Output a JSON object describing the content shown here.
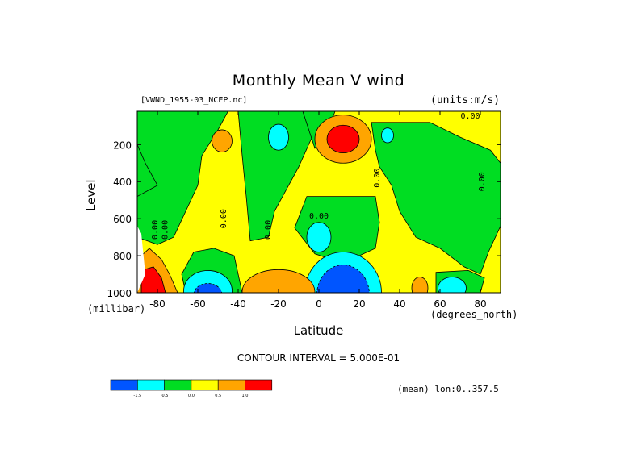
{
  "title": "Monthly Mean V wind",
  "dataset": "[VWND_1955-03_NCEP.nc]",
  "units": "(units:m/s)",
  "y_label": "Level",
  "y_unit": "(millibar)",
  "x_label": "Latitude",
  "x_unit": "(degrees_north)",
  "contour_interval": "CONTOUR INTERVAL = 5.000E-01",
  "mean_note": "(mean) lon:0..357.5",
  "colors": {
    "blue": "#0055ff",
    "cyan": "#00ffff",
    "green": "#00dd22",
    "yellow": "#ffff00",
    "orange": "#ffa500",
    "red": "#ff0000"
  },
  "chart_data": {
    "type": "contour",
    "x_axis": {
      "name": "Latitude",
      "units": "degrees_north",
      "range": [
        -90,
        90
      ],
      "ticks": [
        -80,
        -60,
        -40,
        -20,
        0,
        20,
        40,
        60,
        80
      ]
    },
    "y_axis": {
      "name": "Level",
      "units": "millibar",
      "range": [
        1000,
        10
      ],
      "ticks": [
        200,
        400,
        600,
        800,
        1000
      ],
      "direction": "pressure decreasing upward"
    },
    "contour_interval": 0.5,
    "contour_labels": [
      "0.00",
      "0.00",
      "0.00",
      "0.00",
      "0.00",
      "0.00",
      "0.00",
      "0.00"
    ],
    "legend": {
      "levels": [
        "-1.5",
        "-0.5",
        "0.0",
        "0.5",
        "1.0"
      ],
      "bins": [
        {
          "range": "< -1.5",
          "color": "#0055ff"
        },
        {
          "range": "-1.5 to -0.5",
          "color": "#00ffff"
        },
        {
          "range": "-0.5 to 0.0",
          "color": "#00dd22"
        },
        {
          "range": "0.0 to 0.5",
          "color": "#ffff00"
        },
        {
          "range": "0.5 to 1.0",
          "color": "#ffa500"
        },
        {
          "range": "> 1.0",
          "color": "#ff0000"
        }
      ]
    },
    "features": [
      {
        "lat": 12,
        "level": 170,
        "sign": "positive",
        "peak_bin": "> 1.0"
      },
      {
        "lat": -84,
        "level": 970,
        "sign": "positive",
        "peak_bin": "> 1.0"
      },
      {
        "lat": 12,
        "level": 975,
        "sign": "negative",
        "peak_bin": "< -1.5"
      },
      {
        "lat": -55,
        "level": 985,
        "sign": "negative",
        "peak_bin": "< -1.5"
      },
      {
        "lat": -20,
        "level": 980,
        "sign": "positive",
        "peak_bin": "0.5 to 1.0"
      },
      {
        "lat": 50,
        "level": 970,
        "sign": "positive",
        "peak_bin": "0.5 to 1.0"
      },
      {
        "lat": -48,
        "level": 180,
        "sign": "positive",
        "peak_bin": "0.5 to 1.0"
      },
      {
        "lat": 0,
        "level": 720,
        "sign": "negative",
        "peak_bin": "-1.5 to -0.5"
      },
      {
        "lat": 66,
        "level": 975,
        "sign": "negative",
        "peak_bin": "-1.5 to -0.5"
      },
      {
        "lat": -20,
        "level": 160,
        "sign": "negative",
        "peak_bin": "-1.5 to -0.5"
      }
    ]
  }
}
